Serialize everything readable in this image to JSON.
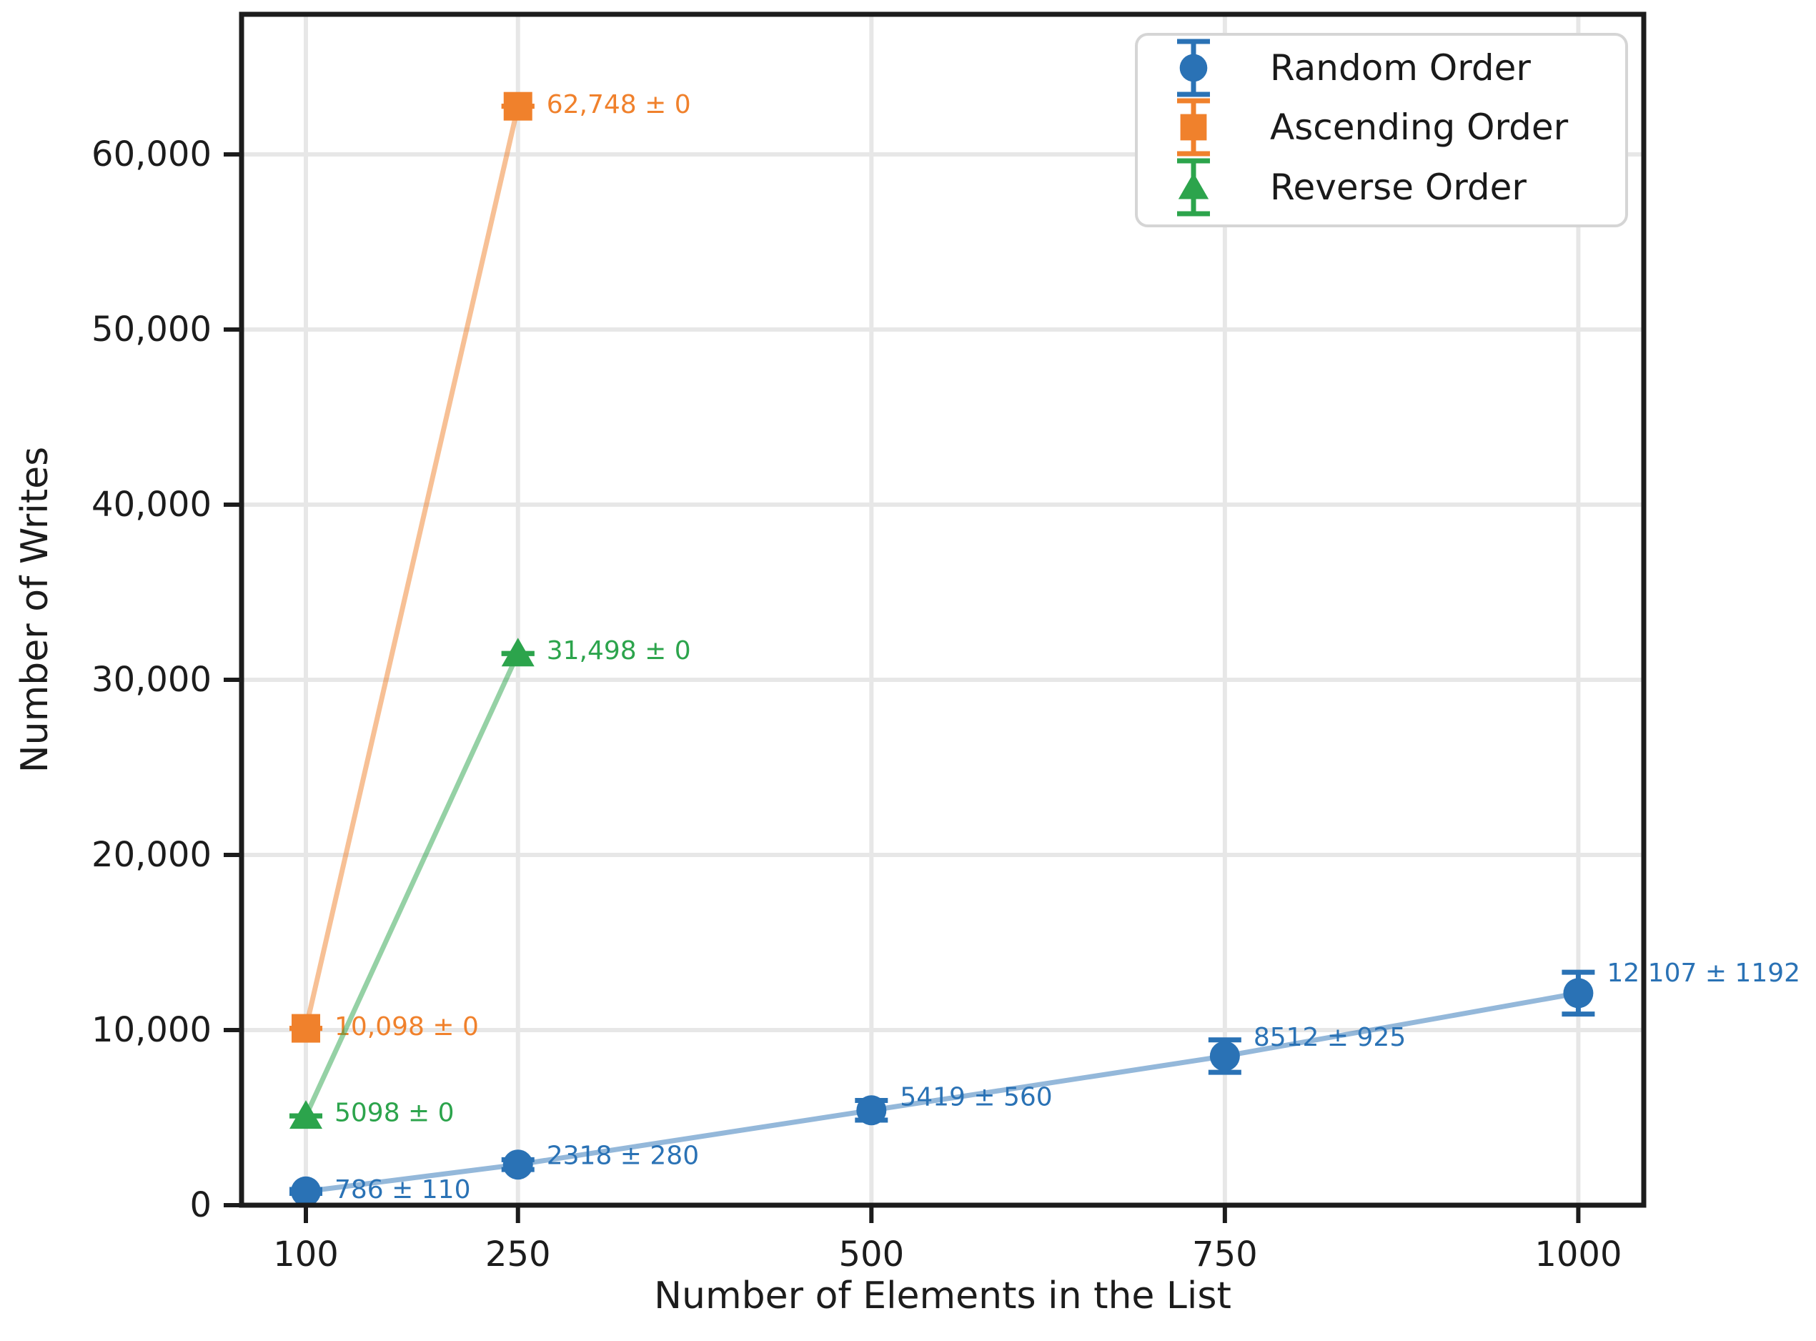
{
  "chart_data": {
    "type": "line",
    "title": "",
    "xlabel": "Number of Elements in the List",
    "ylabel": "Number of Writes",
    "grid": true,
    "legend_position": "upper right",
    "xlim": [
      54.5,
      1046.3
    ],
    "ylim": [
      0,
      68000
    ],
    "x_ticks": [
      {
        "value": 100,
        "label": "100"
      },
      {
        "value": 250,
        "label": "250"
      },
      {
        "value": 500,
        "label": "500"
      },
      {
        "value": 750,
        "label": "750"
      },
      {
        "value": 1000,
        "label": "1000"
      }
    ],
    "y_ticks": [
      {
        "value": 0,
        "label": "0"
      },
      {
        "value": 10000,
        "label": "10,000"
      },
      {
        "value": 20000,
        "label": "20,000"
      },
      {
        "value": 30000,
        "label": "30,000"
      },
      {
        "value": 40000,
        "label": "40,000"
      },
      {
        "value": 50000,
        "label": "50,000"
      },
      {
        "value": 60000,
        "label": "60,000"
      }
    ],
    "series": [
      {
        "name": "Random Order",
        "marker": "circle",
        "color": "#2a72b5",
        "x": [
          100,
          250,
          500,
          750,
          1000
        ],
        "y": [
          786,
          2318,
          5419,
          8512,
          12107
        ],
        "yerr": [
          110,
          280,
          560,
          925,
          1192
        ],
        "point_labels": [
          "786 ± 110",
          "2318 ± 280",
          "5419 ± 560",
          "8512 ± 925",
          "12,107 ± 1192"
        ]
      },
      {
        "name": "Ascending Order",
        "marker": "square",
        "color": "#f0812c",
        "x": [
          100,
          250
        ],
        "y": [
          10098,
          62748
        ],
        "yerr": [
          0,
          0
        ],
        "point_labels": [
          "10,098 ± 0",
          "62,748 ± 0"
        ]
      },
      {
        "name": "Reverse Order",
        "marker": "triangle",
        "color": "#2ca44c",
        "x": [
          100,
          250
        ],
        "y": [
          5098,
          31498
        ],
        "yerr": [
          0,
          0
        ],
        "point_labels": [
          "5098 ± 0",
          "31,498 ± 0"
        ]
      }
    ],
    "legend_entries": [
      "Random Order",
      "Ascending Order",
      "Reverse Order"
    ],
    "colors": {
      "grid": "#e7e7e7",
      "spine": "#1c1c1c",
      "legend_border": "#d5d5d5",
      "background": "#ffffff"
    }
  }
}
